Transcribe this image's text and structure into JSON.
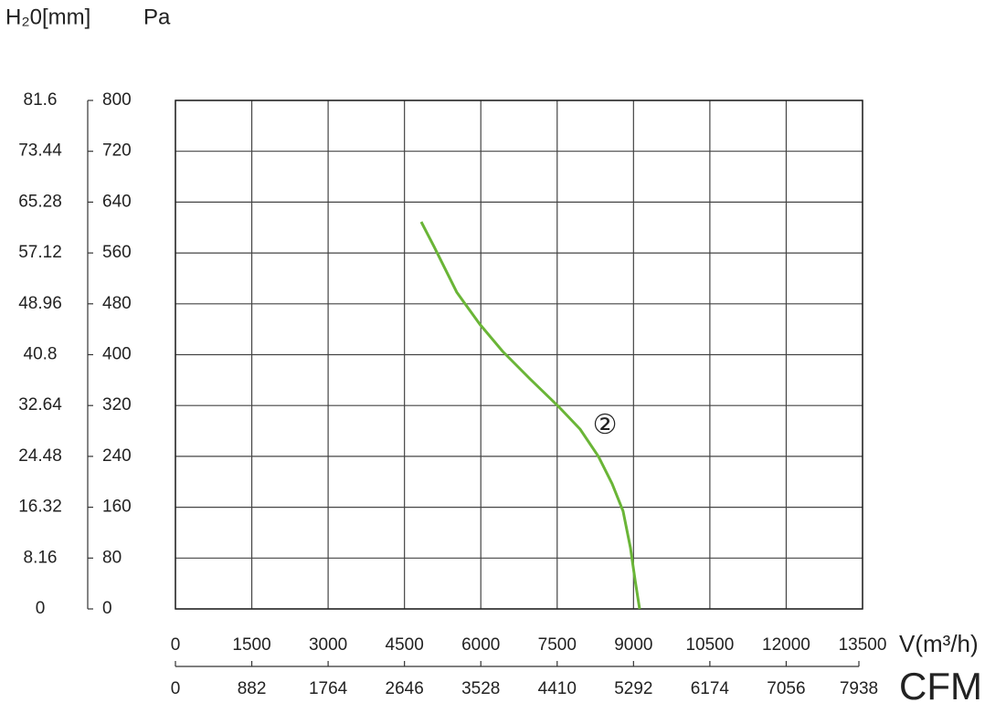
{
  "chart_data": {
    "type": "line",
    "y_unit_label": "Pa",
    "y2_unit_label": "H₂0[mm]",
    "x_unit_label": "V(m³/h)",
    "x2_unit_label": "CFM",
    "x": [
      4830,
      5080,
      5530,
      5980,
      6430,
      6965,
      7520,
      7950,
      8310,
      8580,
      8795,
      8940,
      9030,
      9120
    ],
    "values": [
      609,
      570,
      498,
      448,
      405,
      362,
      319,
      283,
      240,
      197,
      154,
      96,
      46,
      0
    ],
    "color": "#6ab537",
    "annotation": {
      "text": "②",
      "x": 8440,
      "y": 287
    },
    "xlim": [
      0,
      13500
    ],
    "xticks": [
      0,
      1500,
      3000,
      4500,
      6000,
      7500,
      9000,
      10500,
      12000,
      13500
    ],
    "x2lim": [
      0,
      7938
    ],
    "x2ticks": [
      0,
      882,
      1764,
      2646,
      3528,
      4410,
      5292,
      6174,
      7056,
      7938
    ],
    "ylim": [
      0,
      800
    ],
    "yticks": [
      0,
      80,
      160,
      240,
      320,
      400,
      480,
      560,
      640,
      720,
      800
    ],
    "y2lim": [
      0,
      81.6
    ],
    "y2ticks": [
      0,
      8.16,
      16.32,
      24.48,
      32.64,
      40.8,
      48.96,
      57.12,
      65.28,
      73.44,
      81.6
    ],
    "grid": true
  }
}
